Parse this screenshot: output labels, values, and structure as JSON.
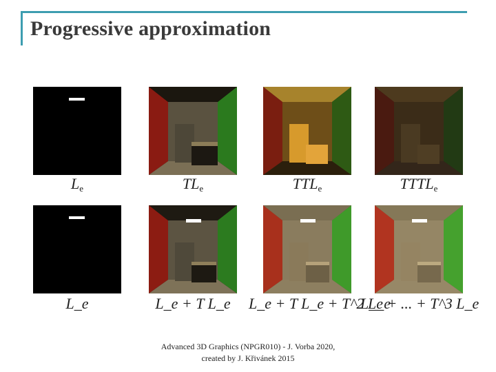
{
  "slide": {
    "title": "Progressive approximation",
    "footer_line1": "Advanced 3D Graphics (NPGR010) - J. Vorba 2020,",
    "footer_line2": "created by J. Křivánek 2015"
  },
  "rows": [
    {
      "images": [
        "emission only",
        "one bounce",
        "two bounces",
        "three bounces"
      ],
      "labels": [
        {
          "parts": [
            "L",
            "e"
          ]
        },
        {
          "parts": [
            "T",
            "",
            "L",
            "e"
          ]
        },
        {
          "parts": [
            "T",
            "",
            "T",
            "",
            "L",
            "e"
          ]
        },
        {
          "parts": [
            "T",
            "",
            "T",
            "",
            "T",
            "",
            "L",
            "e"
          ]
        }
      ]
    },
    {
      "images": [
        "emission only",
        "up to one bounce",
        "up to two bounces",
        "up to three bounces"
      ],
      "labels": [
        {
          "text": "L_e"
        },
        {
          "text": "L_e + T L_e"
        },
        {
          "text": "L_e + T L_e + T^2 L_e"
        },
        {
          "text": "L_e + ... + T^3 L_e"
        }
      ]
    }
  ],
  "colors": {
    "accent": "#3d9db0",
    "title": "#3a3a3a",
    "red_wall": "#b3201a",
    "green_wall": "#2a8a22",
    "light": "#ffffff"
  }
}
